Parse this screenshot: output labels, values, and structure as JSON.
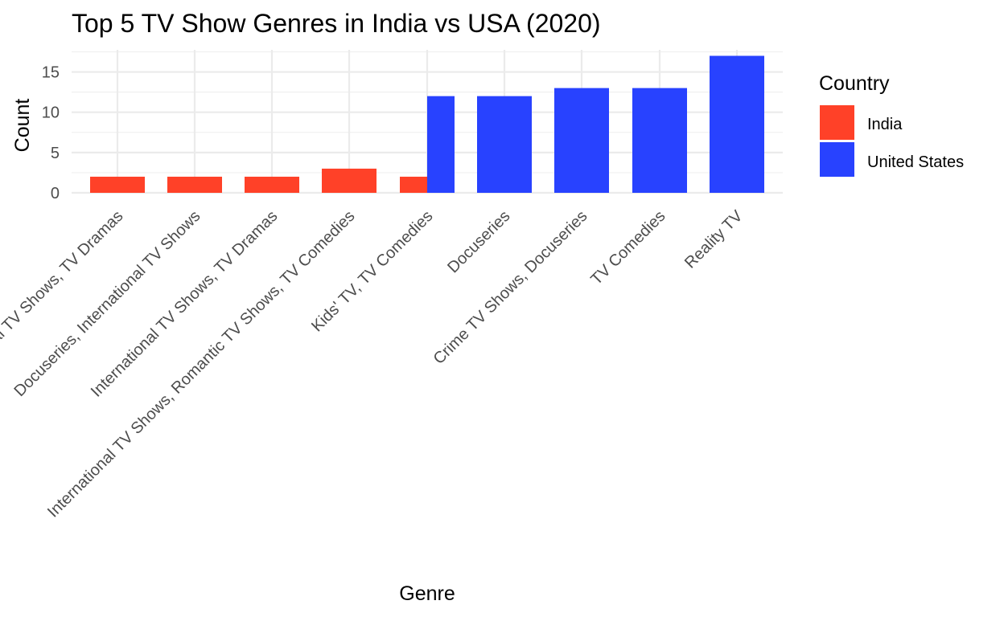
{
  "chart_data": {
    "type": "bar",
    "title": "Top 5 TV Show Genres in India vs USA (2020)",
    "xlabel": "Genre",
    "ylabel": "Count",
    "ylim": [
      0,
      18
    ],
    "yticks": [
      0,
      5,
      10,
      15
    ],
    "grid": true,
    "legend": {
      "title": "Country",
      "placement": "right",
      "entries": [
        {
          "name": "India",
          "color": "#FF4128"
        },
        {
          "name": "United States",
          "color": "#2842FF"
        }
      ]
    },
    "categories": [
      "International TV Shows, TV Dramas",
      "Docuseries, International TV Shows",
      "International TV Shows, TV Dramas",
      "International TV Shows, Romantic TV Shows, TV Comedies",
      "Kids' TV, TV Comedies",
      "Docuseries",
      "Crime TV Shows, Docuseries",
      "TV Comedies",
      "Reality TV"
    ],
    "bars": [
      {
        "category_index": 0,
        "country": "India",
        "value": 2
      },
      {
        "category_index": 1,
        "country": "India",
        "value": 2
      },
      {
        "category_index": 2,
        "country": "India",
        "value": 2
      },
      {
        "category_index": 3,
        "country": "India",
        "value": 3
      },
      {
        "category_index": 4,
        "country": "India",
        "value": 2
      },
      {
        "category_index": 4,
        "country": "United States",
        "value": 12
      },
      {
        "category_index": 5,
        "country": "United States",
        "value": 12
      },
      {
        "category_index": 6,
        "country": "United States",
        "value": 13
      },
      {
        "category_index": 7,
        "country": "United States",
        "value": 13
      },
      {
        "category_index": 8,
        "country": "United States",
        "value": 17
      }
    ]
  }
}
